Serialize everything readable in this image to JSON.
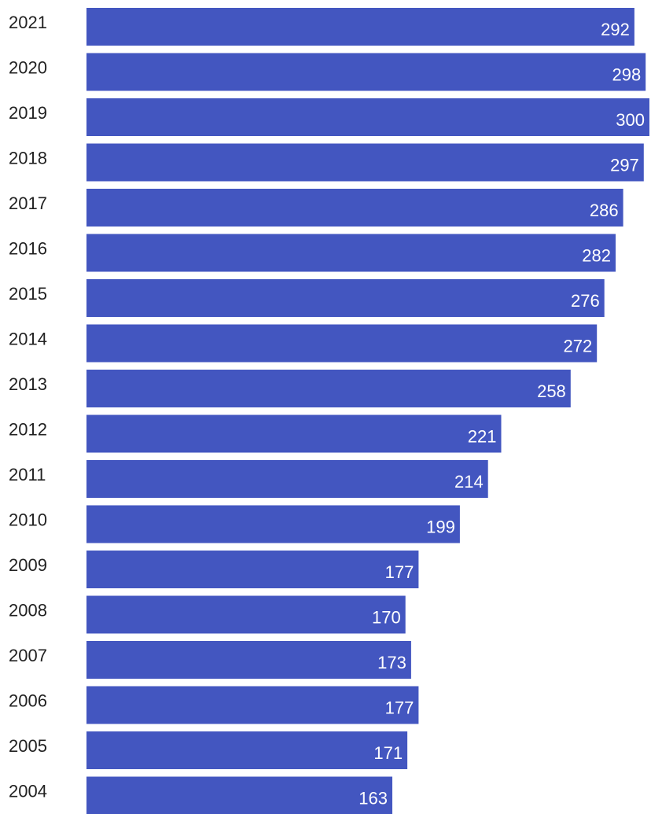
{
  "colors": {
    "bar": "#4356c0",
    "bar_label": "#ffffff",
    "category_label": "#222222",
    "background": "#ffffff"
  },
  "chart_data": {
    "type": "bar",
    "orientation": "horizontal",
    "title": "",
    "xlabel": "",
    "ylabel": "",
    "xlim": [
      0,
      300
    ],
    "grid": false,
    "legend": "none",
    "categories": [
      "2021",
      "2020",
      "2019",
      "2018",
      "2017",
      "2016",
      "2015",
      "2014",
      "2013",
      "2012",
      "2011",
      "2010",
      "2009",
      "2008",
      "2007",
      "2006",
      "2005",
      "2004"
    ],
    "values": [
      292,
      298,
      300,
      297,
      286,
      282,
      276,
      272,
      258,
      221,
      214,
      199,
      177,
      170,
      173,
      177,
      171,
      163
    ],
    "data_labels": [
      "292",
      "298",
      "300",
      "297",
      "286",
      "282",
      "276",
      "272",
      "258",
      "221",
      "214",
      "199",
      "177",
      "170",
      "173",
      "177",
      "171",
      "163"
    ]
  }
}
